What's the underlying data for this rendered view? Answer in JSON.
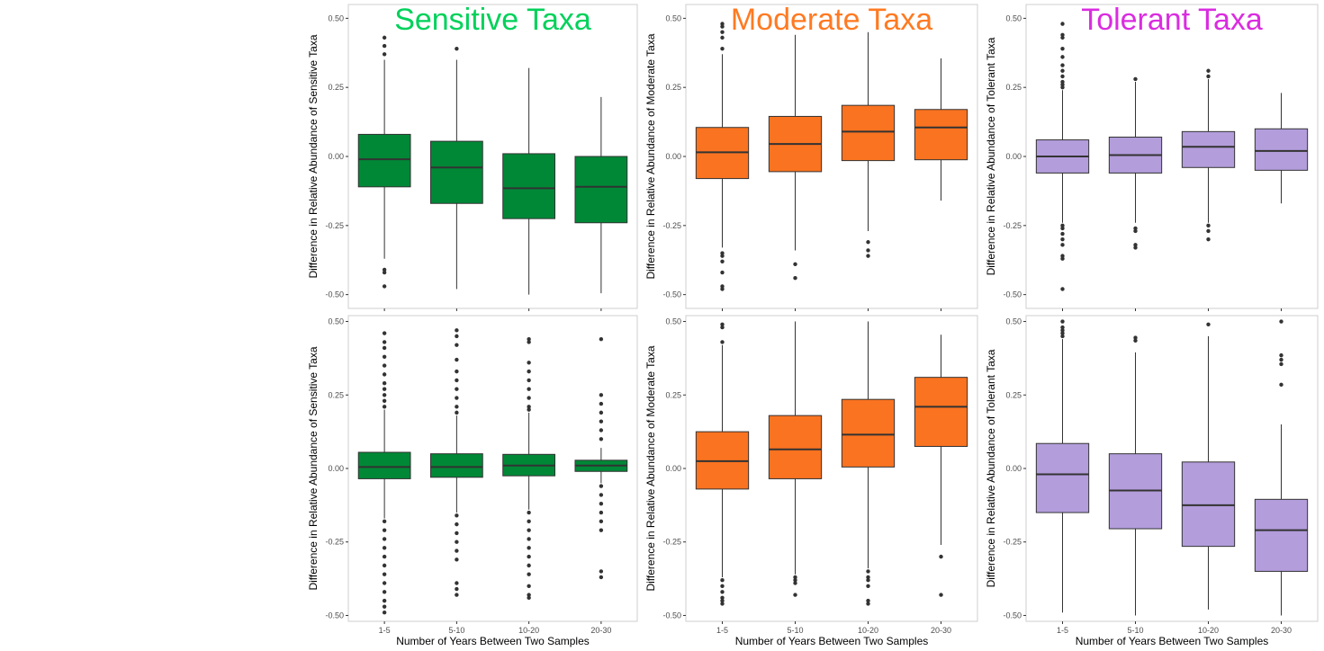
{
  "figure": {
    "title_colors": [
      "#00d15a",
      "#ff7a22",
      "#da2ce0"
    ],
    "box_colors": [
      "#008837",
      "#fa7320",
      "#b39ddb"
    ]
  },
  "chart_data": [
    {
      "type": "box",
      "title": "Sensitive Taxa",
      "title_color": "#00d15a",
      "fill": "#008837",
      "ylabel": "Difference in Relative Abundance of Sensitive Taxa",
      "xlabel": "",
      "categories": [
        "1-5",
        "5-10",
        "10-20",
        "20-30"
      ],
      "ylim": [
        -0.55,
        0.55
      ],
      "yticks": [
        -0.5,
        -0.25,
        0,
        0.25,
        0.5
      ],
      "boxes": [
        {
          "q1": -0.11,
          "median": -0.01,
          "q3": 0.08,
          "whisker_low": -0.37,
          "whisker_high": 0.35,
          "outliers": [
            0.43,
            0.4,
            0.37,
            -0.41,
            -0.42,
            -0.47
          ]
        },
        {
          "q1": -0.17,
          "median": -0.04,
          "q3": 0.055,
          "whisker_low": -0.48,
          "whisker_high": 0.35,
          "outliers": [
            0.39
          ]
        },
        {
          "q1": -0.225,
          "median": -0.115,
          "q3": 0.01,
          "whisker_low": -0.5,
          "whisker_high": 0.32,
          "outliers": []
        },
        {
          "q1": -0.24,
          "median": -0.11,
          "q3": 0.0,
          "whisker_low": -0.495,
          "whisker_high": 0.215,
          "outliers": []
        }
      ]
    },
    {
      "type": "box",
      "title": "Moderate Taxa",
      "title_color": "#ff7a22",
      "fill": "#fa7320",
      "ylabel": "Difference in Relative Abundance of Moderate Taxa",
      "xlabel": "",
      "categories": [
        "1-5",
        "5-10",
        "10-20",
        "20-30"
      ],
      "ylim": [
        -0.55,
        0.55
      ],
      "yticks": [
        -0.5,
        -0.25,
        0,
        0.25,
        0.5
      ],
      "boxes": [
        {
          "q1": -0.08,
          "median": 0.015,
          "q3": 0.105,
          "whisker_low": -0.33,
          "whisker_high": 0.37,
          "outliers": [
            0.48,
            0.47,
            0.45,
            0.43,
            0.39,
            -0.35,
            -0.36,
            -0.38,
            -0.42,
            -0.47,
            -0.48
          ]
        },
        {
          "q1": -0.055,
          "median": 0.045,
          "q3": 0.145,
          "whisker_low": -0.34,
          "whisker_high": 0.44,
          "outliers": [
            -0.39,
            -0.44
          ]
        },
        {
          "q1": -0.015,
          "median": 0.09,
          "q3": 0.185,
          "whisker_low": -0.27,
          "whisker_high": 0.45,
          "outliers": [
            -0.31,
            -0.34,
            -0.36
          ]
        },
        {
          "q1": -0.012,
          "median": 0.105,
          "q3": 0.17,
          "whisker_low": -0.16,
          "whisker_high": 0.355,
          "outliers": []
        }
      ]
    },
    {
      "type": "box",
      "title": "Tolerant Taxa",
      "title_color": "#da2ce0",
      "fill": "#b39ddb",
      "ylabel": "Difference in Relative Abundance of Tolerant Taxa",
      "xlabel": "",
      "categories": [
        "1-5",
        "5-10",
        "10-20",
        "20-30"
      ],
      "ylim": [
        -0.55,
        0.55
      ],
      "yticks": [
        -0.5,
        -0.25,
        0,
        0.25,
        0.5
      ],
      "boxes": [
        {
          "q1": -0.06,
          "median": 0.0,
          "q3": 0.06,
          "whisker_low": -0.24,
          "whisker_high": 0.24,
          "outliers": [
            0.48,
            0.44,
            0.43,
            0.39,
            0.36,
            0.33,
            0.31,
            0.29,
            0.27,
            0.26,
            0.25,
            -0.25,
            -0.26,
            -0.28,
            -0.3,
            -0.32,
            -0.36,
            -0.37,
            -0.48
          ]
        },
        {
          "q1": -0.06,
          "median": 0.005,
          "q3": 0.07,
          "whisker_low": -0.24,
          "whisker_high": 0.27,
          "outliers": [
            0.28,
            -0.26,
            -0.27,
            -0.32,
            -0.33
          ]
        },
        {
          "q1": -0.04,
          "median": 0.035,
          "q3": 0.09,
          "whisker_low": -0.24,
          "whisker_high": 0.28,
          "outliers": [
            0.31,
            0.29,
            -0.25,
            -0.27,
            -0.3
          ]
        },
        {
          "q1": -0.05,
          "median": 0.02,
          "q3": 0.1,
          "whisker_low": -0.17,
          "whisker_high": 0.23,
          "outliers": []
        }
      ]
    },
    {
      "type": "box",
      "title": "",
      "fill": "#008837",
      "ylabel": "Difference in Relative Abundance of Sensitive Taxa",
      "xlabel": "Number of Years Between Two Samples",
      "categories": [
        "1-5",
        "5-10",
        "10-20",
        "20-30"
      ],
      "ylim": [
        -0.52,
        0.52
      ],
      "yticks": [
        -0.5,
        -0.25,
        0,
        0.25,
        0.5
      ],
      "boxes": [
        {
          "q1": -0.035,
          "median": 0.005,
          "q3": 0.055,
          "whisker_low": -0.17,
          "whisker_high": 0.2,
          "outliers": [
            0.46,
            0.43,
            0.41,
            0.38,
            0.35,
            0.32,
            0.29,
            0.27,
            0.25,
            0.23,
            0.21,
            -0.18,
            -0.21,
            -0.24,
            -0.27,
            -0.3,
            -0.33,
            -0.36,
            -0.39,
            -0.42,
            -0.45,
            -0.47,
            -0.49
          ]
        },
        {
          "q1": -0.03,
          "median": 0.005,
          "q3": 0.05,
          "whisker_low": -0.15,
          "whisker_high": 0.18,
          "outliers": [
            0.47,
            0.45,
            0.42,
            0.37,
            0.33,
            0.3,
            0.27,
            0.24,
            0.21,
            0.19,
            -0.16,
            -0.19,
            -0.22,
            -0.25,
            -0.28,
            -0.31,
            -0.39,
            -0.41,
            -0.43
          ]
        },
        {
          "q1": -0.025,
          "median": 0.01,
          "q3": 0.048,
          "whisker_low": -0.14,
          "whisker_high": 0.19,
          "outliers": [
            0.44,
            0.43,
            0.36,
            0.33,
            0.3,
            0.27,
            0.24,
            0.21,
            0.2,
            -0.15,
            -0.18,
            -0.21,
            -0.24,
            -0.27,
            -0.3,
            -0.33,
            -0.36,
            -0.4,
            -0.43,
            -0.44
          ]
        },
        {
          "q1": -0.01,
          "median": 0.01,
          "q3": 0.028,
          "whisker_low": -0.05,
          "whisker_high": 0.07,
          "outliers": [
            0.44,
            0.25,
            0.22,
            0.19,
            0.16,
            0.13,
            0.1,
            -0.06,
            -0.09,
            -0.12,
            -0.15,
            -0.18,
            -0.21,
            -0.35,
            -0.37
          ]
        }
      ]
    },
    {
      "type": "box",
      "title": "",
      "fill": "#fa7320",
      "ylabel": "Difference in Relative Abundance of Moderate Taxa",
      "xlabel": "Number of Years Between Two Samples",
      "categories": [
        "1-5",
        "5-10",
        "10-20",
        "20-30"
      ],
      "ylim": [
        -0.52,
        0.52
      ],
      "yticks": [
        -0.5,
        -0.25,
        0,
        0.25,
        0.5
      ],
      "boxes": [
        {
          "q1": -0.07,
          "median": 0.025,
          "q3": 0.125,
          "whisker_low": -0.37,
          "whisker_high": 0.42,
          "outliers": [
            0.49,
            0.48,
            0.43,
            -0.38,
            -0.4,
            -0.42,
            -0.44,
            -0.45,
            -0.46
          ]
        },
        {
          "q1": -0.035,
          "median": 0.065,
          "q3": 0.18,
          "whisker_low": -0.36,
          "whisker_high": 0.5,
          "outliers": [
            -0.37,
            -0.38,
            -0.39,
            -0.43
          ]
        },
        {
          "q1": 0.005,
          "median": 0.115,
          "q3": 0.235,
          "whisker_low": -0.34,
          "whisker_high": 0.5,
          "outliers": [
            -0.35,
            -0.37,
            -0.38,
            -0.4,
            -0.45,
            -0.46
          ]
        },
        {
          "q1": 0.075,
          "median": 0.21,
          "q3": 0.31,
          "whisker_low": -0.26,
          "whisker_high": 0.455,
          "outliers": [
            -0.3,
            -0.43
          ]
        }
      ]
    },
    {
      "type": "box",
      "title": "",
      "fill": "#b39ddb",
      "ylabel": "Difference in Relative Abundance of Tolerant Taxa",
      "xlabel": "Number of Years Between Two Samples",
      "categories": [
        "1-5",
        "5-10",
        "10-20",
        "20-30"
      ],
      "ylim": [
        -0.52,
        0.52
      ],
      "yticks": [
        -0.5,
        -0.25,
        0,
        0.25,
        0.5
      ],
      "boxes": [
        {
          "q1": -0.15,
          "median": -0.02,
          "q3": 0.085,
          "whisker_low": -0.49,
          "whisker_high": 0.44,
          "outliers": [
            0.5,
            0.48,
            0.47,
            0.46,
            0.45
          ]
        },
        {
          "q1": -0.205,
          "median": -0.075,
          "q3": 0.05,
          "whisker_low": -0.5,
          "whisker_high": 0.395,
          "outliers": [
            0.445,
            0.435
          ]
        },
        {
          "q1": -0.265,
          "median": -0.125,
          "q3": 0.022,
          "whisker_low": -0.48,
          "whisker_high": 0.45,
          "outliers": [
            0.49
          ]
        },
        {
          "q1": -0.35,
          "median": -0.21,
          "q3": -0.105,
          "whisker_low": -0.5,
          "whisker_high": 0.15,
          "outliers": [
            0.5,
            0.385,
            0.37,
            0.355,
            0.285
          ]
        }
      ]
    }
  ]
}
